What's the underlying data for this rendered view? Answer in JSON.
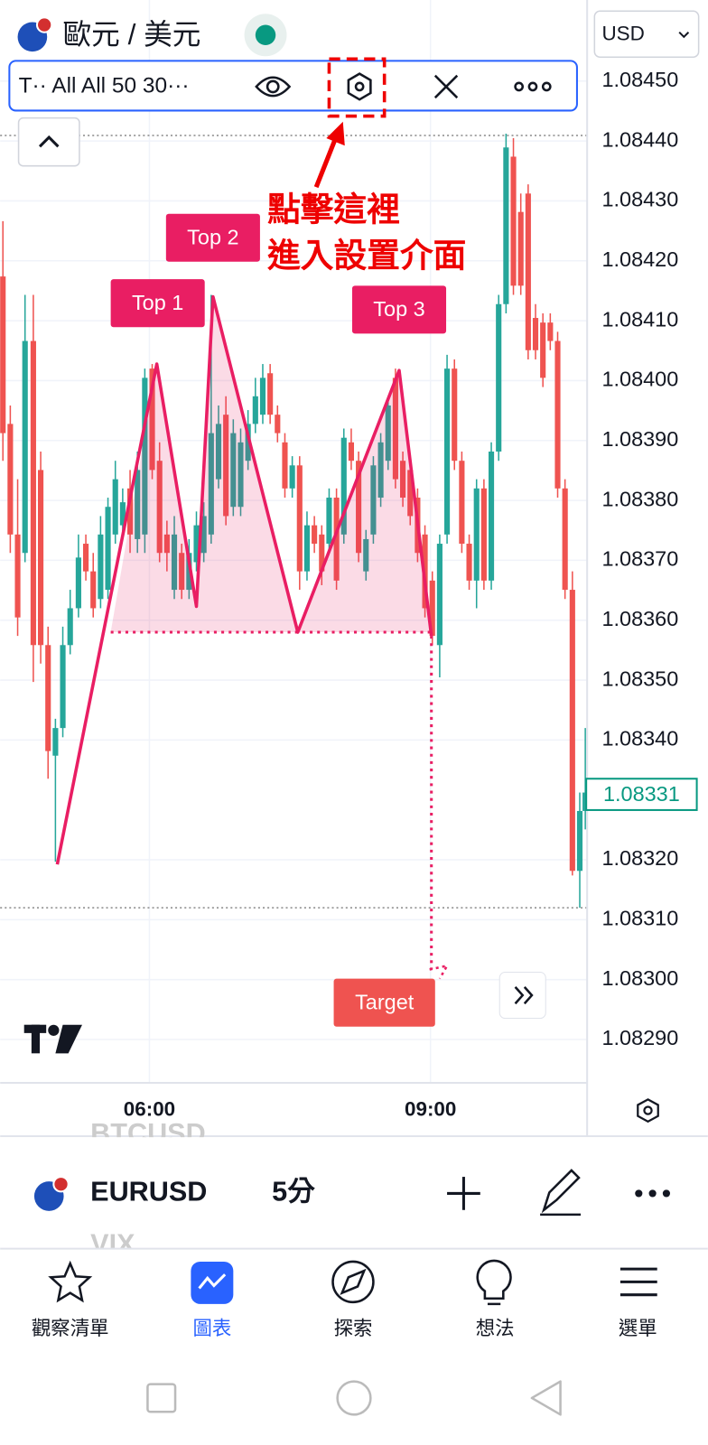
{
  "header": {
    "symbol": "歐元 / 美元",
    "currency": "USD"
  },
  "toolbar": {
    "indicator": "T·· All All 50 30···"
  },
  "price_axis": {
    "labels": [
      "1.08450",
      "1.08440",
      "1.08430",
      "1.08420",
      "1.08410",
      "1.08400",
      "1.08390",
      "1.08380",
      "1.08370",
      "1.08360",
      "1.08350",
      "1.08340",
      "1.08320",
      "1.08310",
      "1.08300",
      "1.08290"
    ],
    "current_price": "1.08331"
  },
  "annotation": {
    "lines": [
      "點擊這裡",
      "進入設置介面"
    ]
  },
  "pattern": {
    "tops": [
      "Top 1",
      "Top 2",
      "Top 3"
    ],
    "target": "Target"
  },
  "time_axis": {
    "labels": [
      "06:00",
      "09:00"
    ]
  },
  "symbol_bar": {
    "previous": "BTCUSD",
    "symbol": "EURUSD",
    "interval": "5分",
    "next": "VIX"
  },
  "nav": {
    "items": [
      "觀察清單",
      "圖表",
      "探索",
      "想法",
      "選單"
    ]
  }
}
